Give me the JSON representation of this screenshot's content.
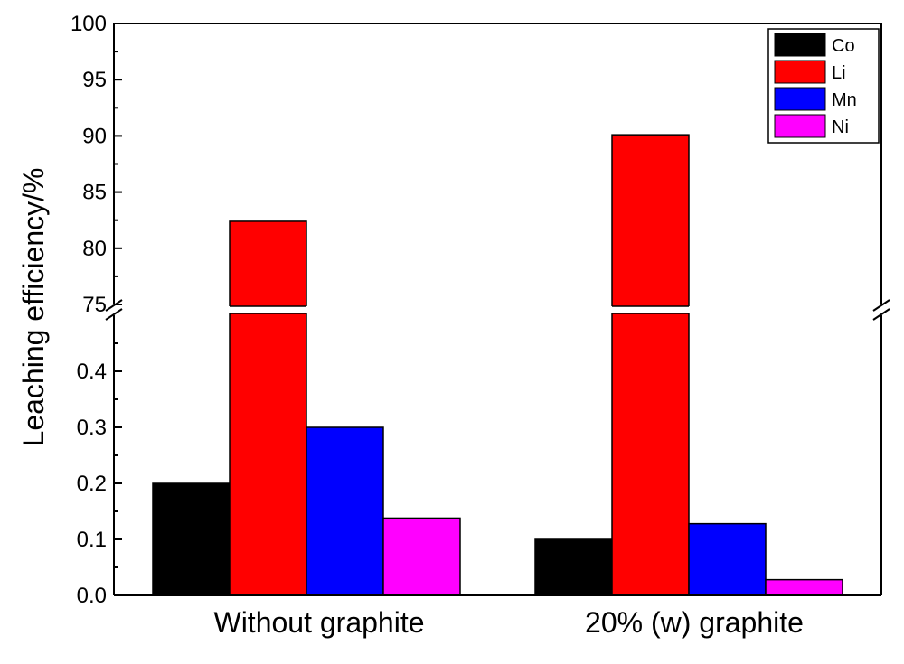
{
  "chart_data": {
    "type": "bar",
    "ylabel": "Leaching efficiency/%",
    "categories": [
      "Without graphite",
      "20% (w) graphite"
    ],
    "series": [
      {
        "name": "Co",
        "color": "#000000",
        "values": [
          0.2,
          0.1
        ]
      },
      {
        "name": "Li",
        "color": "#ff0000",
        "values": [
          82.4,
          90.1
        ]
      },
      {
        "name": "Mn",
        "color": "#0000ff",
        "values": [
          0.3,
          0.128
        ]
      },
      {
        "name": "Ni",
        "color": "#ff00ff",
        "values": [
          0.138,
          0.028
        ]
      }
    ],
    "axis_break": true,
    "lower_ylim": [
      0,
      0.5
    ],
    "upper_ylim": [
      75,
      100
    ],
    "lower_yticks": [
      "0.0",
      "0.1",
      "0.2",
      "0.3",
      "0.4"
    ],
    "upper_yticks": [
      "75",
      "80",
      "85",
      "90",
      "95",
      "100"
    ],
    "legend": {
      "position": "top-right",
      "entries": [
        "Co",
        "Li",
        "Mn",
        "Ni"
      ]
    },
    "grid": false
  }
}
